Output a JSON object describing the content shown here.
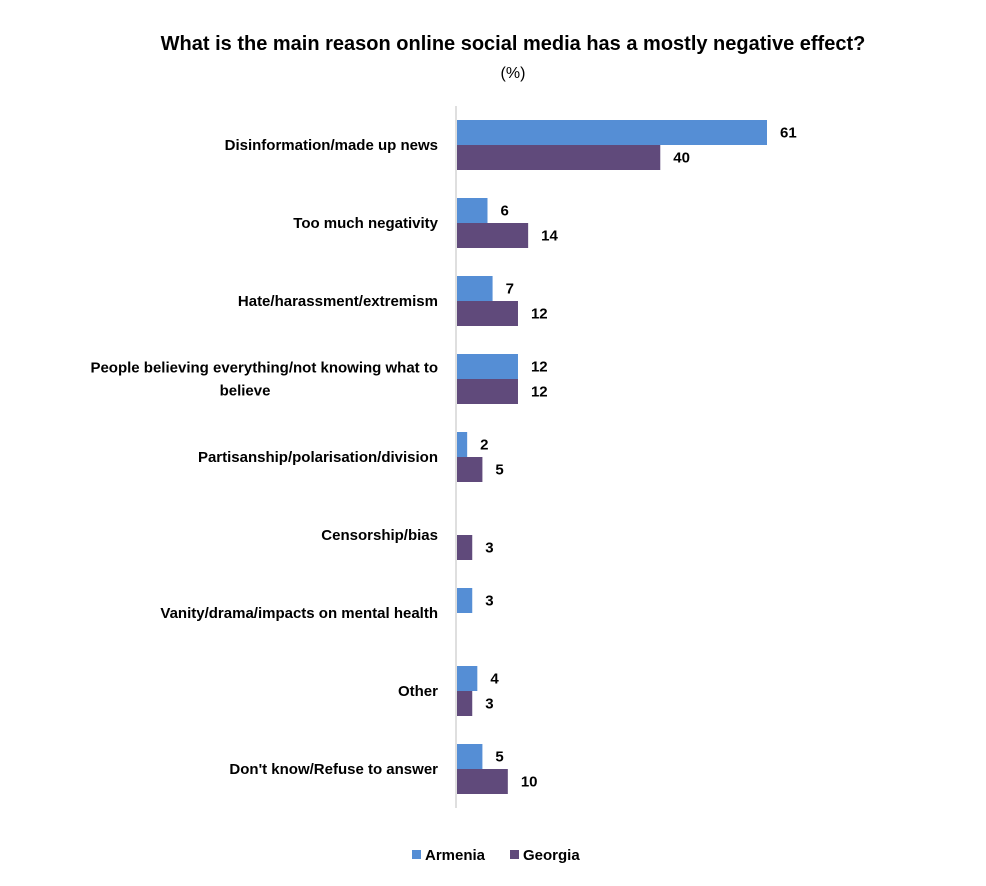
{
  "chart_data": {
    "type": "bar",
    "orientation": "horizontal",
    "title": "What is the main reason online social media has a mostly negative effect?",
    "subtitle": "(%)",
    "categories": [
      [
        "Disinformation/made up news"
      ],
      [
        "Too much negativity"
      ],
      [
        "Hate/harassment/extremism"
      ],
      [
        "People believing everything/not knowing what to",
        "believe"
      ],
      [
        "Partisanship/polarisation/division"
      ],
      [
        "Censorship/bias"
      ],
      [
        "Vanity/drama/impacts on mental health"
      ],
      [
        "Other"
      ],
      [
        "Don't know/Refuse to answer"
      ]
    ],
    "series": [
      {
        "name": "Armenia",
        "color": "#558ED5",
        "values": [
          61,
          6,
          7,
          12,
          2,
          null,
          3,
          4,
          5
        ]
      },
      {
        "name": "Georgia",
        "color": "#604A7B",
        "values": [
          40,
          14,
          12,
          12,
          5,
          3,
          null,
          3,
          10
        ]
      }
    ],
    "xlim": [
      0,
      61
    ],
    "grid": false,
    "legend_position": "bottom-center"
  }
}
